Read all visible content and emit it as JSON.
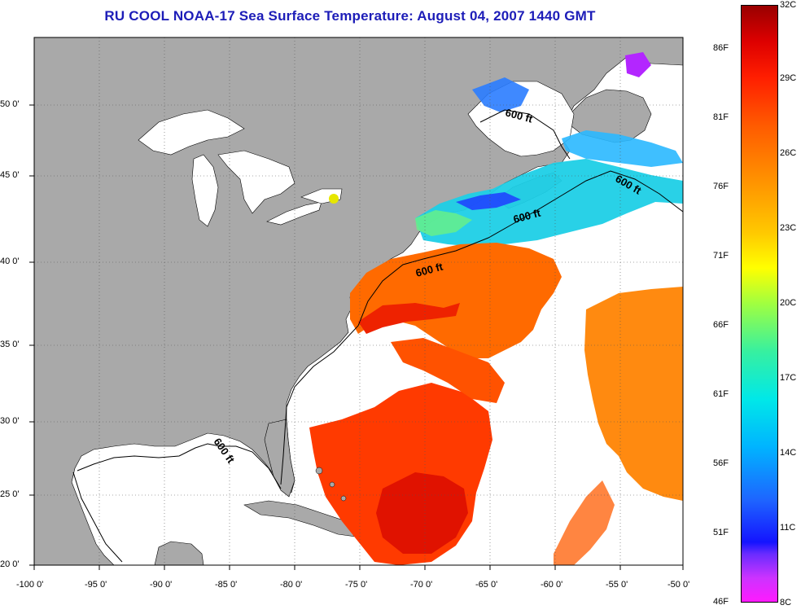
{
  "title": "RU COOL  NOAA-17  Sea Surface Temperature:  August 04, 2007 1440 GMT",
  "map": {
    "lon_range": [
      -100,
      -50
    ],
    "lat_range": [
      20,
      52.5
    ],
    "lon_ticks": [
      "-100 0'",
      "-95 0'",
      "-90 0'",
      "-85 0'",
      "-80 0'",
      "-75 0'",
      "-70 0'",
      "-65 0'",
      "-60 0'",
      "-55 0'",
      "-50 0'"
    ],
    "lat_ticks": [
      "50 0'",
      "45 0'",
      "40 0'",
      "35 0'",
      "30 0'",
      "25 0'",
      "20 0'"
    ],
    "contour_labels": [
      "600 ft",
      "600 ft",
      "600 ft",
      "600 ft",
      "600 ft"
    ],
    "colors": {
      "land": "#a9a9a9",
      "ocean_nodata": "#ffffff",
      "warm": "#ff4a00",
      "hot": "#e81800",
      "cool": "#00e0e0",
      "cold": "#1e3cff"
    }
  },
  "colorbar": {
    "fahrenheit": [
      "86F",
      "81F",
      "76F",
      "71F",
      "66F",
      "61F",
      "56F",
      "51F",
      "46F"
    ],
    "celsius": [
      "32C",
      "29C",
      "26C",
      "23C",
      "20C",
      "17C",
      "14C",
      "11C",
      "8C"
    ]
  }
}
